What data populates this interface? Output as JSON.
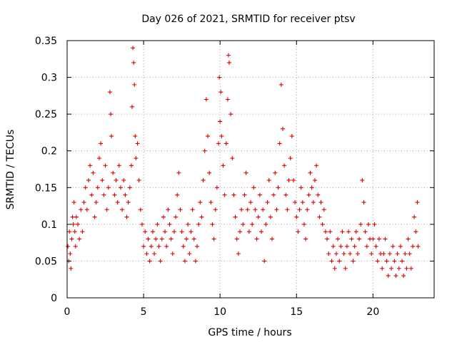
{
  "chart_data": {
    "type": "scatter",
    "title": "Day 026 of 2021, SRMTID for receiver ptsv",
    "xlabel": "GPS time / hours",
    "ylabel": "SRMTID / TECUs",
    "xlim": [
      0,
      24
    ],
    "ylim": [
      0,
      0.35
    ],
    "xticks": [
      0,
      5,
      10,
      15,
      20
    ],
    "xtick_labels": [
      "0",
      "5",
      "10",
      "15",
      "20"
    ],
    "yticks": [
      0,
      0.05,
      0.1,
      0.15,
      0.2,
      0.25,
      0.3,
      0.35
    ],
    "ytick_labels": [
      "0",
      "0.05",
      "0.1",
      "0.15",
      "0.2",
      "0.25",
      "0.3",
      "0.35"
    ],
    "grid": true,
    "marker": "plus",
    "color": "#e00000",
    "series": [
      {
        "name": "SRMTID",
        "points": [
          [
            0.05,
            0.07
          ],
          [
            0.1,
            0.05
          ],
          [
            0.15,
            0.09
          ],
          [
            0.2,
            0.06
          ],
          [
            0.25,
            0.04
          ],
          [
            0.3,
            0.08
          ],
          [
            0.35,
            0.11
          ],
          [
            0.4,
            0.1
          ],
          [
            0.45,
            0.13
          ],
          [
            0.5,
            0.09
          ],
          [
            0.55,
            0.07
          ],
          [
            0.6,
            0.11
          ],
          [
            0.7,
            0.1
          ],
          [
            0.8,
            0.08
          ],
          [
            0.9,
            0.12
          ],
          [
            1.0,
            0.09
          ],
          [
            1.1,
            0.13
          ],
          [
            1.2,
            0.15
          ],
          [
            1.3,
            0.12
          ],
          [
            1.4,
            0.16
          ],
          [
            1.5,
            0.18
          ],
          [
            1.6,
            0.14
          ],
          [
            1.7,
            0.17
          ],
          [
            1.8,
            0.11
          ],
          [
            1.9,
            0.13
          ],
          [
            2.0,
            0.15
          ],
          [
            2.1,
            0.19
          ],
          [
            2.2,
            0.21
          ],
          [
            2.3,
            0.16
          ],
          [
            2.4,
            0.14
          ],
          [
            2.5,
            0.18
          ],
          [
            2.6,
            0.12
          ],
          [
            2.7,
            0.15
          ],
          [
            2.8,
            0.28
          ],
          [
            2.85,
            0.25
          ],
          [
            2.9,
            0.22
          ],
          [
            3.0,
            0.17
          ],
          [
            3.1,
            0.14
          ],
          [
            3.2,
            0.16
          ],
          [
            3.3,
            0.13
          ],
          [
            3.4,
            0.18
          ],
          [
            3.5,
            0.15
          ],
          [
            3.6,
            0.12
          ],
          [
            3.7,
            0.16
          ],
          [
            3.8,
            0.14
          ],
          [
            3.9,
            0.11
          ],
          [
            4.0,
            0.13
          ],
          [
            4.1,
            0.15
          ],
          [
            4.2,
            0.18
          ],
          [
            4.25,
            0.26
          ],
          [
            4.3,
            0.34
          ],
          [
            4.35,
            0.32
          ],
          [
            4.4,
            0.29
          ],
          [
            4.45,
            0.22
          ],
          [
            4.5,
            0.19
          ],
          [
            4.6,
            0.21
          ],
          [
            4.7,
            0.16
          ],
          [
            4.8,
            0.12
          ],
          [
            4.9,
            0.1
          ],
          [
            5.0,
            0.07
          ],
          [
            5.1,
            0.09
          ],
          [
            5.2,
            0.06
          ],
          [
            5.3,
            0.08
          ],
          [
            5.4,
            0.05
          ],
          [
            5.5,
            0.07
          ],
          [
            5.6,
            0.09
          ],
          [
            5.7,
            0.06
          ],
          [
            5.8,
            0.08
          ],
          [
            5.9,
            0.1
          ],
          [
            6.0,
            0.07
          ],
          [
            6.1,
            0.05
          ],
          [
            6.2,
            0.08
          ],
          [
            6.3,
            0.11
          ],
          [
            6.4,
            0.09
          ],
          [
            6.5,
            0.07
          ],
          [
            6.6,
            0.12
          ],
          [
            6.7,
            0.1
          ],
          [
            6.8,
            0.08
          ],
          [
            6.9,
            0.06
          ],
          [
            7.0,
            0.09
          ],
          [
            7.1,
            0.11
          ],
          [
            7.2,
            0.14
          ],
          [
            7.3,
            0.17
          ],
          [
            7.4,
            0.12
          ],
          [
            7.5,
            0.09
          ],
          [
            7.6,
            0.07
          ],
          [
            7.7,
            0.05
          ],
          [
            7.8,
            0.08
          ],
          [
            7.9,
            0.1
          ],
          [
            8.0,
            0.06
          ],
          [
            8.1,
            0.09
          ],
          [
            8.2,
            0.12
          ],
          [
            8.3,
            0.08
          ],
          [
            8.4,
            0.05
          ],
          [
            8.5,
            0.07
          ],
          [
            8.6,
            0.1
          ],
          [
            8.7,
            0.13
          ],
          [
            8.8,
            0.11
          ],
          [
            8.9,
            0.16
          ],
          [
            9.0,
            0.2
          ],
          [
            9.1,
            0.27
          ],
          [
            9.2,
            0.22
          ],
          [
            9.3,
            0.17
          ],
          [
            9.4,
            0.13
          ],
          [
            9.5,
            0.1
          ],
          [
            9.6,
            0.08
          ],
          [
            9.7,
            0.12
          ],
          [
            9.8,
            0.15
          ],
          [
            9.9,
            0.21
          ],
          [
            9.95,
            0.3
          ],
          [
            10.0,
            0.24
          ],
          [
            10.05,
            0.28
          ],
          [
            10.1,
            0.22
          ],
          [
            10.2,
            0.18
          ],
          [
            10.3,
            0.14
          ],
          [
            10.4,
            0.21
          ],
          [
            10.5,
            0.27
          ],
          [
            10.55,
            0.33
          ],
          [
            10.6,
            0.32
          ],
          [
            10.7,
            0.25
          ],
          [
            10.8,
            0.19
          ],
          [
            10.9,
            0.14
          ],
          [
            11.0,
            0.11
          ],
          [
            11.1,
            0.08
          ],
          [
            11.2,
            0.06
          ],
          [
            11.3,
            0.09
          ],
          [
            11.4,
            0.12
          ],
          [
            11.5,
            0.1
          ],
          [
            11.6,
            0.14
          ],
          [
            11.7,
            0.17
          ],
          [
            11.8,
            0.12
          ],
          [
            11.9,
            0.09
          ],
          [
            12.0,
            0.13
          ],
          [
            12.1,
            0.1
          ],
          [
            12.2,
            0.15
          ],
          [
            12.3,
            0.12
          ],
          [
            12.4,
            0.08
          ],
          [
            12.5,
            0.11
          ],
          [
            12.6,
            0.14
          ],
          [
            12.7,
            0.09
          ],
          [
            12.8,
            0.12
          ],
          [
            12.9,
            0.05
          ],
          [
            13.0,
            0.1
          ],
          [
            13.1,
            0.13
          ],
          [
            13.2,
            0.16
          ],
          [
            13.3,
            0.11
          ],
          [
            13.4,
            0.08
          ],
          [
            13.5,
            0.14
          ],
          [
            13.6,
            0.17
          ],
          [
            13.7,
            0.12
          ],
          [
            13.8,
            0.15
          ],
          [
            13.9,
            0.21
          ],
          [
            14.0,
            0.29
          ],
          [
            14.1,
            0.23
          ],
          [
            14.2,
            0.18
          ],
          [
            14.3,
            0.14
          ],
          [
            14.4,
            0.12
          ],
          [
            14.5,
            0.16
          ],
          [
            14.6,
            0.19
          ],
          [
            14.7,
            0.22
          ],
          [
            14.8,
            0.16
          ],
          [
            14.9,
            0.13
          ],
          [
            15.0,
            0.11
          ],
          [
            15.1,
            0.09
          ],
          [
            15.2,
            0.12
          ],
          [
            15.3,
            0.15
          ],
          [
            15.4,
            0.13
          ],
          [
            15.5,
            0.1
          ],
          [
            15.6,
            0.08
          ],
          [
            15.7,
            0.12
          ],
          [
            15.8,
            0.14
          ],
          [
            15.9,
            0.17
          ],
          [
            16.0,
            0.15
          ],
          [
            16.1,
            0.13
          ],
          [
            16.2,
            0.16
          ],
          [
            16.3,
            0.18
          ],
          [
            16.4,
            0.14
          ],
          [
            16.5,
            0.11
          ],
          [
            16.6,
            0.13
          ],
          [
            16.7,
            0.1
          ],
          [
            16.8,
            0.12
          ],
          [
            16.9,
            0.09
          ],
          [
            17.0,
            0.08
          ],
          [
            17.1,
            0.06
          ],
          [
            17.2,
            0.09
          ],
          [
            17.3,
            0.05
          ],
          [
            17.4,
            0.07
          ],
          [
            17.5,
            0.04
          ],
          [
            17.6,
            0.06
          ],
          [
            17.7,
            0.08
          ],
          [
            17.8,
            0.05
          ],
          [
            17.9,
            0.07
          ],
          [
            18.0,
            0.09
          ],
          [
            18.1,
            0.06
          ],
          [
            18.2,
            0.04
          ],
          [
            18.3,
            0.07
          ],
          [
            18.4,
            0.09
          ],
          [
            18.5,
            0.06
          ],
          [
            18.6,
            0.08
          ],
          [
            18.7,
            0.05
          ],
          [
            18.8,
            0.07
          ],
          [
            18.9,
            0.09
          ],
          [
            19.0,
            0.06
          ],
          [
            19.1,
            0.08
          ],
          [
            19.2,
            0.1
          ],
          [
            19.3,
            0.16
          ],
          [
            19.4,
            0.13
          ],
          [
            19.5,
            0.09
          ],
          [
            19.6,
            0.07
          ],
          [
            19.7,
            0.1
          ],
          [
            19.8,
            0.08
          ],
          [
            19.9,
            0.06
          ],
          [
            20.0,
            0.08
          ],
          [
            20.1,
            0.1
          ],
          [
            20.2,
            0.07
          ],
          [
            20.3,
            0.05
          ],
          [
            20.4,
            0.08
          ],
          [
            20.5,
            0.06
          ],
          [
            20.6,
            0.04
          ],
          [
            20.7,
            0.06
          ],
          [
            20.8,
            0.08
          ],
          [
            20.9,
            0.05
          ],
          [
            21.0,
            0.03
          ],
          [
            21.1,
            0.06
          ],
          [
            21.2,
            0.04
          ],
          [
            21.3,
            0.07
          ],
          [
            21.4,
            0.05
          ],
          [
            21.5,
            0.03
          ],
          [
            21.6,
            0.06
          ],
          [
            21.7,
            0.04
          ],
          [
            21.8,
            0.07
          ],
          [
            21.9,
            0.05
          ],
          [
            22.0,
            0.03
          ],
          [
            22.1,
            0.06
          ],
          [
            22.2,
            0.04
          ],
          [
            22.3,
            0.08
          ],
          [
            22.4,
            0.06
          ],
          [
            22.5,
            0.04
          ],
          [
            22.6,
            0.07
          ],
          [
            22.7,
            0.11
          ],
          [
            22.8,
            0.09
          ],
          [
            22.9,
            0.13
          ],
          [
            22.95,
            0.07
          ]
        ]
      }
    ]
  }
}
